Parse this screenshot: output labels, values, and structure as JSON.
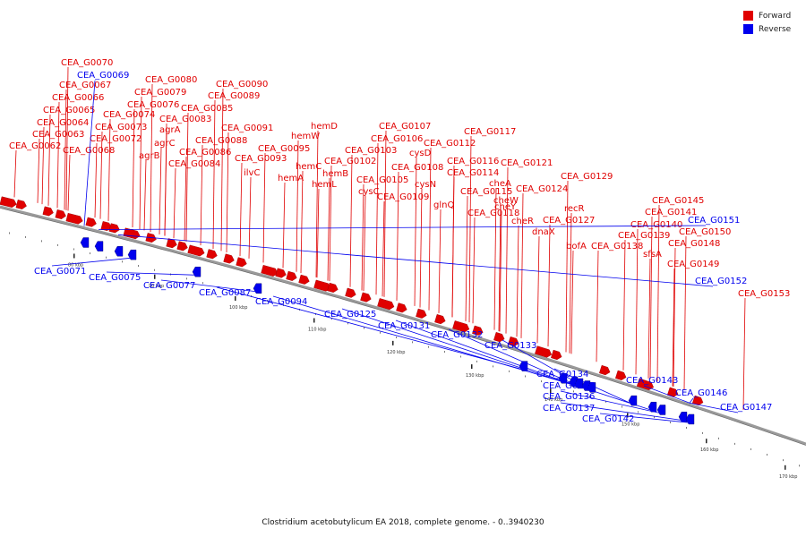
{
  "title": "Clostridium acetobutylicum EA 2018, complete genome. - 0..3940230",
  "colors": {
    "forward": "#e00000",
    "reverse": "#0000ee",
    "backbone": "#888888"
  },
  "legend": [
    {
      "label": "Forward",
      "strand": "forward"
    },
    {
      "label": "Reverse",
      "strand": "reverse"
    }
  ],
  "scale": {
    "unit": "kbp",
    "ticks": [
      "80 kbp",
      "90 kbp",
      "100 kbp",
      "110 kbp",
      "120 kbp",
      "130 kbp",
      "140 kbp",
      "150 kbp",
      "160 kbp",
      "170 kbp"
    ]
  },
  "forward_labels": [
    "CEA_G0070",
    "CEA_G0067",
    "CEA_G0066",
    "CEA_G0065",
    "CEA_G0064",
    "CEA_G0063",
    "CEA_G0062",
    "CEA_G0080",
    "CEA_G0079",
    "CEA_G0076",
    "CEA_G0074",
    "CEA_G0073",
    "CEA_G0072",
    "CEA_G0068",
    "agrA",
    "agrC",
    "agrB",
    "CEA_G0083",
    "CEA_G0085",
    "CEA_G0086",
    "CEA_G0088",
    "CEA_G0084",
    "CEA_G0090",
    "CEA_G0089",
    "CEA_G0091",
    "CEA_G0093",
    "ilvC",
    "CEA_G0095",
    "hemD",
    "hemW",
    "hemC",
    "hemA",
    "hemB",
    "hemL",
    "CEA_G0102",
    "CEA_G0103",
    "CEA_G0107",
    "CEA_G0106",
    "cysD",
    "CEA_G0108",
    "CEA_G0105",
    "cysC",
    "cysN",
    "CEA_G0109",
    "CEA_G0112",
    "CEA_G0117",
    "CEA_G0116",
    "CEA_G0114",
    "CEA_G0115",
    "glnQ",
    "CEA_G0118",
    "cheA",
    "cheW",
    "cheY",
    "cheR",
    "CEA_G0121",
    "CEA_G0124",
    "CEA_G0129",
    "recR",
    "CEA_G0127",
    "dnaX",
    "bofA",
    "CEA_G0145",
    "CEA_G0141",
    "CEA_G0140",
    "CEA_G0139",
    "CEA_G0138",
    "sfsA",
    "CEA_G0150",
    "CEA_G0148",
    "CEA_G0149",
    "CEA_G0153"
  ],
  "reverse_labels": [
    "CEA_G0069",
    "CEA_G0151",
    "CEA_G0152",
    "CEA_G0071",
    "CEA_G0075",
    "CEA_G0077",
    "CEA_G0087",
    "CEA_G0094",
    "CEA_G0125",
    "CEA_G0131",
    "CEA_G0132",
    "CEA_G0133",
    "CEA_G0134",
    "CEA_G0135",
    "CEA_G0136",
    "CEA_G0137",
    "CEA_G0142",
    "CEA_G0143",
    "CEA_G0146",
    "CEA_G0147"
  ]
}
